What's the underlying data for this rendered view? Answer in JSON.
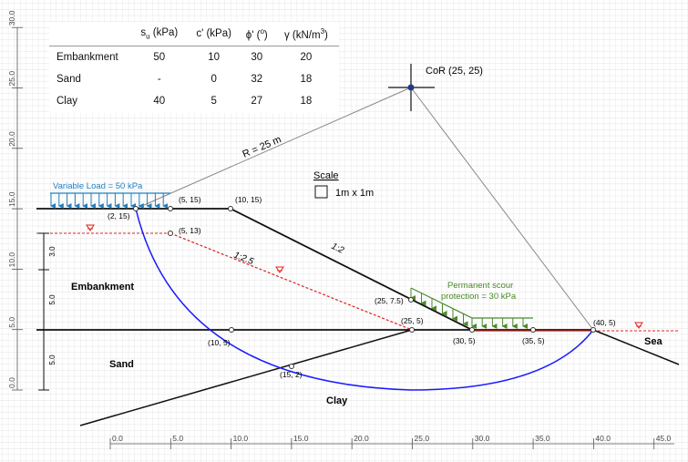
{
  "table": {
    "headers": [
      "",
      "su (kPa)",
      "c' (kPa)",
      "ϕ' (°)",
      "γ (kN/m³)"
    ],
    "rows": [
      {
        "material": "Embankment",
        "su": "50",
        "c": "10",
        "phi": "30",
        "gamma": "20"
      },
      {
        "material": "Sand",
        "su": "-",
        "c": "0",
        "phi": "32",
        "gamma": "18"
      },
      {
        "material": "Clay",
        "su": "40",
        "c": "5",
        "phi": "27",
        "gamma": "18"
      }
    ]
  },
  "labels": {
    "cor": "CoR (25, 25)",
    "radius": "R = 25 m",
    "variable_load": "Variable Load = 50 kPa",
    "scour": "Permanent scour",
    "scour2": "protection = 30 kPa",
    "scale_title": "Scale",
    "scale_value": "1m x 1m",
    "slope_1_2": "1:2",
    "slope_1_2_5": "1:2.5",
    "embankment": "Embankment",
    "sand": "Sand",
    "clay": "Clay",
    "sea": "Sea"
  },
  "points": {
    "p_5_15": "(5, 15)",
    "p_10_15": "(10, 15)",
    "p_2_15": "(2, 15)",
    "p_5_13": "(5, 13)",
    "p_25_7_5": "(25, 7.5)",
    "p_25_5": "(25, 5)",
    "p_40_5": "(40, 5)",
    "p_10_5": "(10, 5)",
    "p_30_5": "(30, 5)",
    "p_35_5": "(35, 5)",
    "p_15_2": "(15, 2)"
  },
  "dimensions": {
    "d1": "3.0",
    "d2": "5.0",
    "d3": "5.0"
  },
  "x_axis_ticks": [
    "0.0",
    "5.0",
    "10.0",
    "15.0",
    "20.0",
    "25.0",
    "30.0",
    "35.0",
    "40.0",
    "45.0"
  ],
  "y_axis_ticks": [
    "0.0",
    "5.0",
    "10.0",
    "15.0",
    "20.0",
    "25.0",
    "30.0"
  ],
  "colors": {
    "load": "#1f7fc1",
    "scour": "#4a8a2a",
    "slip": "#1a1aff",
    "water": "#e02020"
  }
}
